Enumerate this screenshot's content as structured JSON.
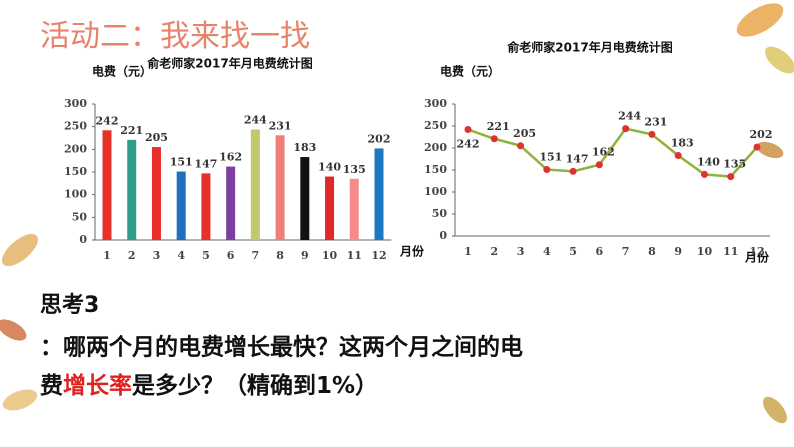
{
  "heading": "活动二：我来找一找",
  "question": {
    "label": "思考3",
    "line1": "：哪两个月的电费增长最快？这两个月之间的电",
    "line2_start": "费",
    "highlight": "增长率",
    "line2_end": "是多少？（精确到1%）"
  },
  "chart_data": [
    {
      "type": "bar",
      "title": "俞老师家2017年月电费统计图",
      "y_label": "电费（元）",
      "x_label": "月份",
      "categories": [
        "1",
        "2",
        "3",
        "4",
        "5",
        "6",
        "7",
        "8",
        "9",
        "10",
        "11",
        "12"
      ],
      "values": [
        242,
        221,
        205,
        151,
        147,
        162,
        244,
        231,
        183,
        140,
        135,
        202
      ],
      "colors": [
        "#e8302a",
        "#2e9e8a",
        "#e8302a",
        "#1e6fc0",
        "#e8302a",
        "#7b3fa0",
        "#c2c86e",
        "#f07f78",
        "#111111",
        "#e02828",
        "#f58a8a",
        "#1e78c0"
      ],
      "ylim": [
        0,
        300
      ],
      "yticks": [
        0,
        50,
        100,
        150,
        200,
        250,
        300
      ]
    },
    {
      "type": "line",
      "title": "俞老师家2017年月电费统计图",
      "y_label": "电费（元）",
      "x_label": "月份",
      "categories": [
        "1",
        "2",
        "3",
        "4",
        "5",
        "6",
        "7",
        "8",
        "9",
        "10",
        "11",
        "12"
      ],
      "values": [
        242,
        221,
        205,
        151,
        147,
        162,
        244,
        231,
        183,
        140,
        135,
        202
      ],
      "color": "#8cb33a",
      "marker_color": "#e03030",
      "ylim": [
        0,
        300
      ],
      "yticks": [
        0,
        50,
        100,
        150,
        200,
        250,
        300
      ]
    }
  ]
}
